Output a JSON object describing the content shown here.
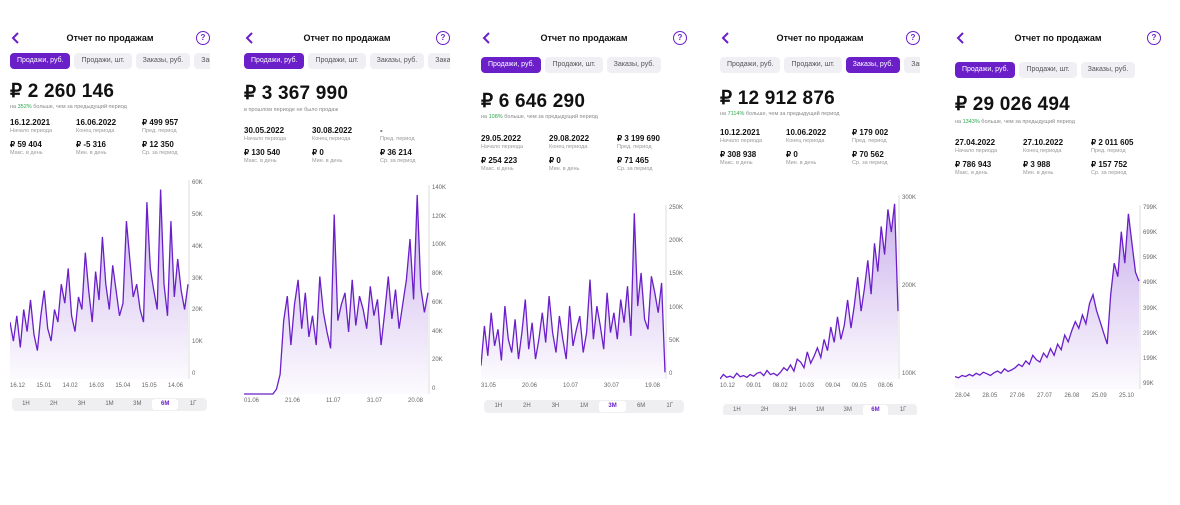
{
  "accent": "#6a1fc9",
  "up_color": "#2aa74b",
  "screens": [
    {
      "title": "Отчет по продажам",
      "tabs": [
        {
          "label": "Продажи, руб.",
          "active": true
        },
        {
          "label": "Продажи, шт.",
          "active": false
        },
        {
          "label": "Заказы, руб.",
          "active": false
        },
        {
          "label": "Заказы, шт.",
          "active": false
        }
      ],
      "total": "₽ 2 260 146",
      "sub_prefix": "на ",
      "sub_pct": "352%",
      "sub_suffix": " больше, чем за предыдущий период",
      "stats": [
        {
          "value": "16.12.2021",
          "label": "Начало периода"
        },
        {
          "value": "16.06.2022",
          "label": "Конец периода"
        },
        {
          "value": "₽ 499 957",
          "label": "Пред. период"
        },
        {
          "value": "₽ 59 404",
          "label": "Макс. в день"
        },
        {
          "value": "₽ -5 316",
          "label": "Мин. в день"
        },
        {
          "value": "₽ 12 350",
          "label": "Ср. за период"
        }
      ],
      "y_ticks": [
        "60K",
        "50K",
        "40K",
        "30K",
        "20K",
        "10K",
        "0"
      ],
      "x_ticks": [
        "16.12",
        "15.01",
        "14.02",
        "16.03",
        "15.04",
        "15.05",
        "14.06"
      ],
      "periods": [
        "1Н",
        "2Н",
        "3Н",
        "1М",
        "3М",
        "6М",
        "1Г"
      ],
      "active_period": "6М",
      "chart_data": {
        "type": "area",
        "ylim": [
          -5000,
          65000
        ],
        "values": [
          18,
          12,
          20,
          10,
          22,
          15,
          25,
          14,
          9,
          20,
          28,
          16,
          12,
          22,
          18,
          30,
          24,
          35,
          20,
          15,
          26,
          22,
          40,
          28,
          18,
          34,
          25,
          45,
          30,
          22,
          36,
          28,
          20,
          24,
          50,
          38,
          26,
          30,
          22,
          18,
          56,
          35,
          28,
          22,
          60,
          30,
          20,
          50,
          26,
          38,
          28,
          22,
          30
        ]
      }
    },
    {
      "title": "Отчет по продажам",
      "tabs": [
        {
          "label": "Продажи, руб.",
          "active": true
        },
        {
          "label": "Продажи, шт.",
          "active": false
        },
        {
          "label": "Заказы, руб.",
          "active": false
        },
        {
          "label": "Заказы, шт.",
          "active": false
        }
      ],
      "total": "₽ 3 367 990",
      "sub_prefix": "",
      "sub_pct": "",
      "sub_suffix": "в прошлом периоде не было продаж",
      "stats": [
        {
          "value": "30.05.2022",
          "label": "Начало периода"
        },
        {
          "value": "30.08.2022",
          "label": "Конец периода"
        },
        {
          "value": "-",
          "label": "Пред. период"
        },
        {
          "value": "₽ 130 540",
          "label": "Макс. в день"
        },
        {
          "value": "₽ 0",
          "label": "Мин. в день"
        },
        {
          "value": "₽ 36 214",
          "label": "Ср. за период"
        }
      ],
      "y_ticks": [
        "140K",
        "120K",
        "100K",
        "80K",
        "60K",
        "40K",
        "20K",
        "0"
      ],
      "x_ticks": [
        "01.06",
        "21.06",
        "11.07",
        "31.07",
        "20.08"
      ],
      "periods": [],
      "active_period": "",
      "chart_data": {
        "type": "area",
        "ylim": [
          0,
          140000
        ],
        "values": [
          0,
          0,
          0,
          0,
          0,
          0,
          0,
          0,
          0,
          3,
          12,
          45,
          60,
          30,
          55,
          70,
          40,
          62,
          35,
          48,
          30,
          72,
          50,
          38,
          28,
          110,
          45,
          55,
          62,
          38,
          70,
          42,
          60,
          52,
          40,
          66,
          48,
          58,
          30,
          50,
          72,
          46,
          64,
          40,
          55,
          70,
          95,
          58,
          122,
          65,
          50,
          62
        ]
      }
    },
    {
      "title": "Отчет по продажам",
      "tabs": [
        {
          "label": "Продажи, руб.",
          "active": true
        },
        {
          "label": "Продажи, шт.",
          "active": false
        },
        {
          "label": "Заказы, руб.",
          "active": false
        }
      ],
      "total": "₽ 6 646 290",
      "sub_prefix": "на ",
      "sub_pct": "108%",
      "sub_suffix": " больше, чем за предыдущий период",
      "stats": [
        {
          "value": "29.05.2022",
          "label": "Начало периода"
        },
        {
          "value": "29.08.2022",
          "label": "Конец периода"
        },
        {
          "value": "₽ 3 199 690",
          "label": "Пред. период"
        },
        {
          "value": "₽ 254 223",
          "label": "Макс. в день"
        },
        {
          "value": "₽ 0",
          "label": "Мин. в день"
        },
        {
          "value": "₽ 71 465",
          "label": "Ср. за период"
        }
      ],
      "y_ticks": [
        "250K",
        "200K",
        "150K",
        "100K",
        "50K",
        "0"
      ],
      "x_ticks": [
        "31.05",
        "20.06",
        "10.07",
        "30.07",
        "19.08"
      ],
      "periods": [
        "1Н",
        "2Н",
        "3Н",
        "1М",
        "3М",
        "6М",
        "1Г"
      ],
      "active_period": "3М",
      "chart_data": {
        "type": "area",
        "ylim": [
          0,
          270000
        ],
        "values": [
          20,
          80,
          35,
          100,
          50,
          75,
          28,
          110,
          60,
          40,
          90,
          30,
          70,
          120,
          45,
          85,
          30,
          60,
          100,
          55,
          125,
          70,
          40,
          95,
          60,
          30,
          110,
          50,
          75,
          95,
          40,
          70,
          150,
          60,
          110,
          80,
          45,
          130,
          70,
          100,
          60,
          120,
          85,
          140,
          65,
          250,
          110,
          160,
          90,
          75,
          155,
          130,
          100,
          145,
          10
        ]
      }
    },
    {
      "title": "Отчет по продажам",
      "tabs": [
        {
          "label": "Продажи, руб.",
          "active": false
        },
        {
          "label": "Продажи, шт.",
          "active": false
        },
        {
          "label": "Заказы, руб.",
          "active": true
        },
        {
          "label": "Заказы, шт.",
          "active": false
        }
      ],
      "total": "₽ 12 912 876",
      "sub_prefix": "на ",
      "sub_pct": "7114%",
      "sub_suffix": " больше, чем за предыдущий период",
      "stats": [
        {
          "value": "10.12.2021",
          "label": "Начало периода"
        },
        {
          "value": "10.06.2022",
          "label": "Конец периода"
        },
        {
          "value": "₽ 179 002",
          "label": "Пред. период"
        },
        {
          "value": "₽ 308 938",
          "label": "Макс. в день"
        },
        {
          "value": "₽ 0",
          "label": "Мин. в день"
        },
        {
          "value": "₽ 70 562",
          "label": "Ср. за период"
        }
      ],
      "y_ticks": [
        "300K",
        "200K",
        "100K"
      ],
      "x_ticks": [
        "10.12",
        "09.01",
        "08.02",
        "10.03",
        "09.04",
        "09.05",
        "08.06"
      ],
      "periods": [
        "1Н",
        "2Н",
        "3Н",
        "1М",
        "3М",
        "6М",
        "1Г"
      ],
      "active_period": "6М",
      "chart_data": {
        "type": "area",
        "ylim": [
          0,
          320000
        ],
        "values": [
          0,
          8,
          3,
          5,
          2,
          10,
          4,
          6,
          3,
          8,
          5,
          10,
          12,
          6,
          15,
          8,
          10,
          6,
          12,
          20,
          15,
          25,
          14,
          35,
          30,
          20,
          48,
          28,
          40,
          55,
          38,
          70,
          50,
          92,
          65,
          110,
          70,
          95,
          140,
          90,
          130,
          180,
          120,
          160,
          210,
          150,
          240,
          190,
          270,
          220,
          300,
          260,
          310,
          120
        ]
      }
    },
    {
      "title": "Отчет по продажам",
      "tabs": [
        {
          "label": "Продажи, руб.",
          "active": true
        },
        {
          "label": "Продажи, шт.",
          "active": false
        },
        {
          "label": "Заказы, руб.",
          "active": false
        }
      ],
      "total": "₽ 29 026 494",
      "sub_prefix": "на ",
      "sub_pct": "1343%",
      "sub_suffix": " больше, чем за предыдущий период",
      "stats": [
        {
          "value": "27.04.2022",
          "label": "Начало периода"
        },
        {
          "value": "27.10.2022",
          "label": "Конец периода"
        },
        {
          "value": "₽ 2 011 605",
          "label": "Пред. период"
        },
        {
          "value": "₽ 786 943",
          "label": "Макс. в день"
        },
        {
          "value": "₽ 3 988",
          "label": "Мин. в день"
        },
        {
          "value": "₽ 157 752",
          "label": "Ср. за период"
        }
      ],
      "y_ticks": [
        "799K",
        "699K",
        "599K",
        "499K",
        "399K",
        "299K",
        "199K",
        "99K"
      ],
      "x_ticks": [
        "28.04",
        "28.05",
        "27.06",
        "27.07",
        "26.08",
        "25.09",
        "25.10"
      ],
      "periods": [],
      "active_period": "",
      "chart_data": {
        "type": "area",
        "ylim": [
          0,
          850000
        ],
        "values": [
          55,
          50,
          60,
          55,
          65,
          58,
          70,
          62,
          75,
          68,
          60,
          72,
          80,
          70,
          90,
          78,
          85,
          95,
          110,
          100,
          125,
          110,
          150,
          130,
          120,
          160,
          140,
          180,
          150,
          200,
          175,
          240,
          210,
          260,
          300,
          270,
          330,
          290,
          380,
          420,
          350,
          300,
          250,
          200,
          420,
          560,
          500,
          700,
          560,
          780,
          650,
          520,
          480
        ]
      }
    }
  ]
}
